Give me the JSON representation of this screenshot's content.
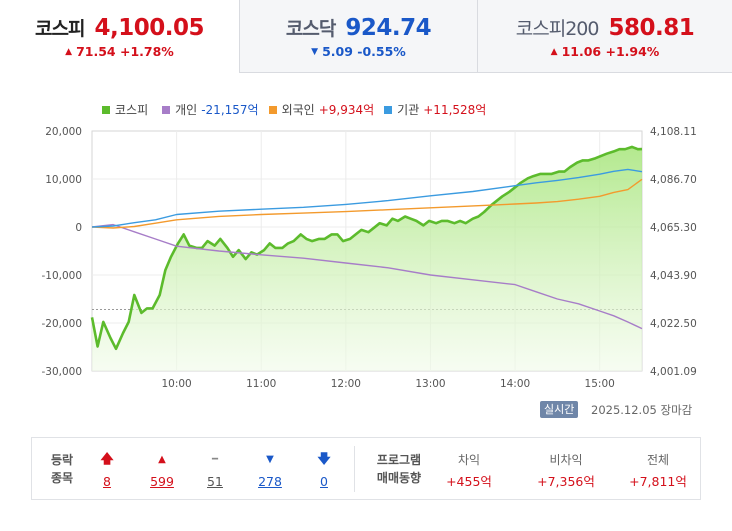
{
  "tabs": [
    {
      "name": "코스피",
      "value": "4,100.05",
      "arrow": "▲",
      "change": "71.54",
      "rate": "+1.78%",
      "direction": "up"
    },
    {
      "name": "코스닥",
      "value": "924.74",
      "arrow": "▼",
      "change": "5.09",
      "rate": "-0.55%",
      "direction": "down"
    },
    {
      "name": "코스피200",
      "value": "580.81",
      "arrow": "▲",
      "change": "11.06",
      "rate": "+1.94%",
      "direction": "up"
    }
  ],
  "legend": [
    {
      "label": "코스피",
      "value": "",
      "color": "#5cbb2c",
      "sign": ""
    },
    {
      "label": "개인",
      "value": "-21,157억",
      "color": "#a77dc8",
      "sign": "neg"
    },
    {
      "label": "외국인",
      "value": "+9,934억",
      "color": "#f39a2d",
      "sign": "pos"
    },
    {
      "label": "기관",
      "value": "+11,528억",
      "color": "#3b9be0",
      "sign": "pos"
    }
  ],
  "chart_data": {
    "type": "line",
    "title": "",
    "x_ticks": [
      "10:00",
      "11:00",
      "12:00",
      "13:00",
      "14:00",
      "15:00"
    ],
    "x_range": [
      "09:00",
      "15:30"
    ],
    "left_axis": {
      "ticks": [
        "20,000",
        "10,000",
        "0",
        "-10,000",
        "-20,000",
        "-30,000"
      ],
      "range": [
        -30000,
        20000
      ]
    },
    "right_axis": {
      "ticks": [
        "4,108.11",
        "4,086.70",
        "4,065.30",
        "4,043.90",
        "4,022.50",
        "4,001.09"
      ],
      "range": [
        4001.09,
        4108.11
      ]
    },
    "previous_close": 4028.51,
    "grid": true,
    "legend_position": "top-left",
    "series": [
      {
        "name": "코스피",
        "axis": "right",
        "color": "#5cbb2c",
        "fill": true,
        "x": [
          "09:00",
          "09:04",
          "09:08",
          "09:13",
          "09:17",
          "09:22",
          "09:26",
          "09:30",
          "09:35",
          "09:39",
          "09:43",
          "09:48",
          "09:52",
          "09:56",
          "10:01",
          "10:05",
          "10:09",
          "10:14",
          "10:18",
          "10:22",
          "10:27",
          "10:31",
          "10:36",
          "10:40",
          "10:44",
          "10:49",
          "10:53",
          "10:57",
          "11:02",
          "11:06",
          "11:10",
          "11:15",
          "11:19",
          "11:23",
          "11:28",
          "11:32",
          "11:36",
          "11:41",
          "11:45",
          "11:50",
          "11:54",
          "11:58",
          "12:03",
          "12:07",
          "12:11",
          "12:16",
          "12:20",
          "12:24",
          "12:29",
          "12:33",
          "12:37",
          "12:42",
          "12:46",
          "12:50",
          "12:55",
          "12:59",
          "13:04",
          "13:08",
          "13:12",
          "13:17",
          "13:21",
          "13:25",
          "13:30",
          "13:34",
          "13:38",
          "13:43",
          "13:47",
          "13:51",
          "13:56",
          "14:00",
          "14:04",
          "14:09",
          "14:13",
          "14:18",
          "14:22",
          "14:26",
          "14:31",
          "14:35",
          "14:39",
          "14:44",
          "14:48",
          "14:52",
          "14:57",
          "15:01",
          "15:05",
          "15:10",
          "15:14",
          "15:18",
          "15:23",
          "15:27",
          "15:30"
        ],
        "values": [
          4025,
          4012,
          4023,
          4016,
          4011,
          4018,
          4023,
          4035,
          4027,
          4029,
          4029,
          4035,
          4046,
          4052,
          4058,
          4062,
          4057,
          4056,
          4056,
          4059,
          4057,
          4060,
          4056,
          4052,
          4055,
          4051,
          4054,
          4053,
          4055,
          4058,
          4056,
          4056,
          4058,
          4059,
          4062,
          4060,
          4059,
          4060,
          4060,
          4062,
          4062,
          4059,
          4060,
          4062,
          4064,
          4063,
          4065,
          4067,
          4066,
          4069,
          4068,
          4070,
          4069,
          4068,
          4066,
          4068,
          4067,
          4068,
          4068,
          4067,
          4068,
          4067,
          4069,
          4070,
          4072,
          4075,
          4077,
          4079,
          4081,
          4083,
          4085,
          4087,
          4088,
          4089,
          4089,
          4089,
          4090,
          4090,
          4092,
          4094,
          4095,
          4095,
          4096,
          4097,
          4098,
          4099,
          4100,
          4100,
          4101,
          4100,
          4100.05
        ]
      },
      {
        "name": "개인",
        "axis": "left",
        "color": "#a77dc8",
        "x": [
          "09:00",
          "09:15",
          "09:30",
          "09:45",
          "10:00",
          "10:30",
          "11:00",
          "11:30",
          "12:00",
          "12:30",
          "13:00",
          "13:30",
          "14:00",
          "14:15",
          "14:30",
          "14:45",
          "15:00",
          "15:10",
          "15:20",
          "15:30"
        ],
        "values": [
          0,
          500,
          -1000,
          -2500,
          -4000,
          -5000,
          -5800,
          -6500,
          -7500,
          -8500,
          -10000,
          -11000,
          -12000,
          -13500,
          -15000,
          -16000,
          -17500,
          -18500,
          -19800,
          -21157
        ]
      },
      {
        "name": "외국인",
        "axis": "left",
        "color": "#f39a2d",
        "x": [
          "09:00",
          "09:15",
          "09:30",
          "09:45",
          "10:00",
          "10:30",
          "11:00",
          "11:30",
          "12:00",
          "12:30",
          "13:00",
          "13:30",
          "14:00",
          "14:15",
          "14:30",
          "14:45",
          "15:00",
          "15:10",
          "15:20",
          "15:30"
        ],
        "values": [
          0,
          -200,
          100,
          800,
          1500,
          2200,
          2600,
          2900,
          3200,
          3600,
          4000,
          4400,
          4800,
          5000,
          5300,
          5800,
          6400,
          7200,
          7800,
          9934
        ]
      },
      {
        "name": "기관",
        "axis": "left",
        "color": "#3b9be0",
        "x": [
          "09:00",
          "09:15",
          "09:30",
          "09:45",
          "10:00",
          "10:30",
          "11:00",
          "11:30",
          "12:00",
          "12:30",
          "13:00",
          "13:30",
          "14:00",
          "14:15",
          "14:30",
          "14:45",
          "15:00",
          "15:10",
          "15:20",
          "15:30"
        ],
        "values": [
          0,
          200,
          900,
          1500,
          2600,
          3300,
          3700,
          4100,
          4700,
          5500,
          6500,
          7400,
          8600,
          9200,
          9700,
          10300,
          11000,
          11600,
          12000,
          11528
        ]
      }
    ]
  },
  "realtime": {
    "badge": "실시간",
    "date_status": "2025.12.05 장마감"
  },
  "stats": {
    "header_line1": "등락",
    "header_line2": "종목",
    "counts": [
      {
        "symbol": "🡅",
        "value": "8",
        "tone": "r"
      },
      {
        "symbol": "▲",
        "value": "599",
        "tone": "r"
      },
      {
        "symbol": "━",
        "value": "51",
        "tone": "g"
      },
      {
        "symbol": "▼",
        "value": "278",
        "tone": "b"
      },
      {
        "symbol": "🡇",
        "value": "0",
        "tone": "b"
      }
    ],
    "program_line1": "프로그램",
    "program_line2": "매매동향",
    "program": [
      {
        "label": "차익",
        "value": "+455억"
      },
      {
        "label": "비차익",
        "value": "+7,356억"
      },
      {
        "label": "전체",
        "value": "+7,811억"
      }
    ]
  }
}
